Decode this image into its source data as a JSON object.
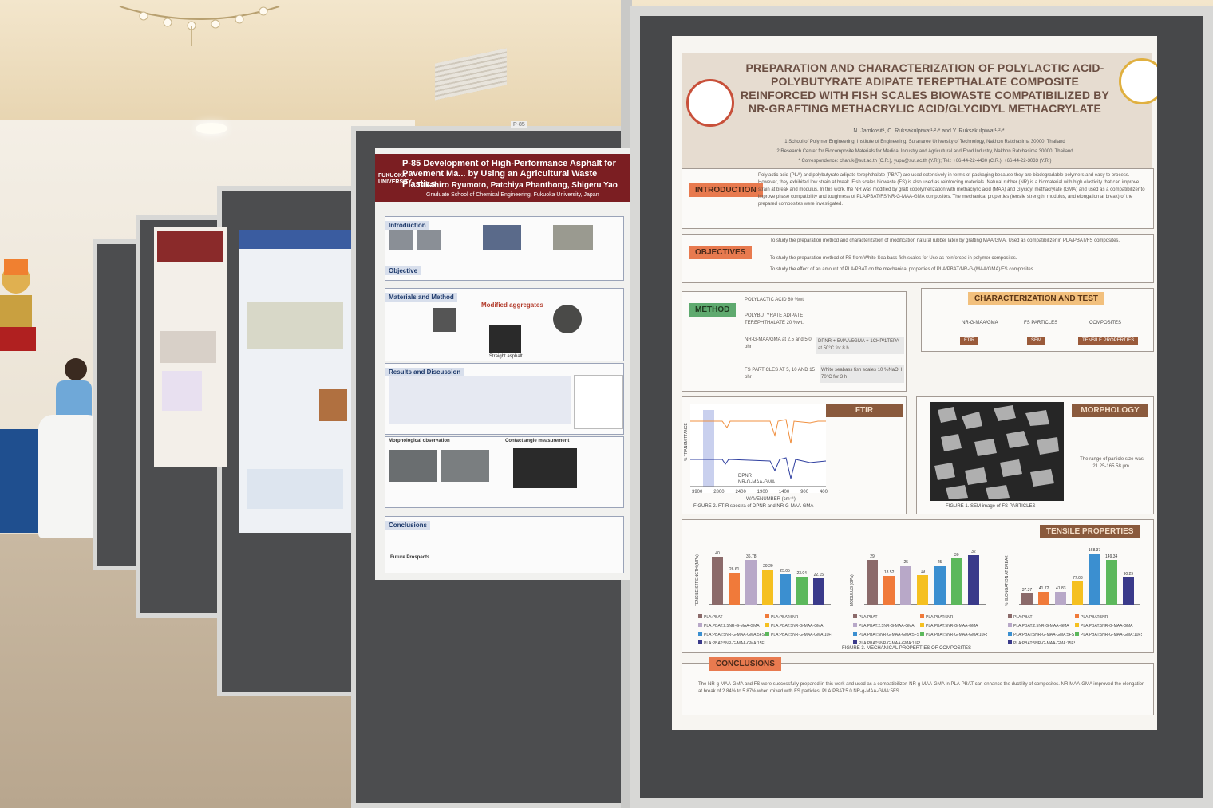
{
  "main_poster": {
    "title": "Preparation and Characterization of Polylactic Acid-Polybutyrate Adipate Terepthalate Composite Reinforced with Fish Scales Biowaste Compatibilized by NR-Grafting Methacrylic Acid/Glycidyl Methacrylate",
    "authors": "N. Jamkosit¹, C. Ruksakulpiwat¹·²·* and Y. Ruksakulpiwat¹·²·*",
    "affiliation_1": "1 School of Polymer Engineering, Institute of Engineering, Suranaree University of Technology, Nakhon Ratchasima 30000, Thailand",
    "affiliation_2": "2 Research Center for Biocomposite Materials for Medical Industry and Agricultural and Food Industry, Nakhon Ratchasima 30000, Thailand",
    "correspondence": "* Correspondence: charuk@sut.ac.th (C.R.), yupa@sut.ac.th (Y.R.); Tel.: +66-44-22-4430 (C.R.); +66-44-22-3033 (Y.R.)",
    "introduction": {
      "heading": "Introduction",
      "text": "Polylactic acid (PLA) and polybutyrate adipate terephthalate (PBAT) are used extensively in terms of packaging because they are biodegradable polymers and easy to process. However, they exhibited low strain at break. Fish scales biowaste (FS) is also used as reinforcing materials. Natural rubber (NR) is a biomaterial with high elasticity that can improve strain at break and modulus. In this work, the NR was modified by graft copolymerization with methacrylic acid (MAA) and Glycidyl methacrylate (GMA) and used as a compatibilizer to improve phase compatibility and toughness of PLA/PBAT/FS/NR-G-MAA-GMA composites. The mechanical properties (tensile strength, modulus, and elongation at break) of the prepared composites were investigated."
    },
    "objectives": {
      "heading": "Objectives",
      "items": [
        "To study the preparation method and characterization of modification natural rubber latex by grafting MAA/GMA. Used as compatibilizer in PLA/PBAT/FS composites.",
        "To study the preparation method of FS from White Sea bass fish scales for Use as reinforced in polymer composites.",
        "To study the effect of an amount of PLA/PBAT on the mechanical properties of PLA/PBAT/NR-G-(MAA/GMA)/FS composites."
      ]
    },
    "method": {
      "heading": "Method",
      "step1": "POLYLACTIC ACID 80 %wt.",
      "step2": "POLYBUTYRATE ADIPATE TEREPHTHALATE 20 %wt.",
      "step3": "NR-G-MAA/GMA at 2.5 and 5.0 phr",
      "step4": "FS PARTICLES AT 5, 10 AND 15 phr",
      "note1": "DPNR + 5MAA/5GMA + 1CHP/1TEPA at 50°C for 8 h",
      "note2": "White seabass fish scales 10 %NaOH 70°C for 3 h"
    },
    "characterization": {
      "heading": "Characterization and Test",
      "groups": [
        "NR-G-MAA/GMA",
        "FS PARTICLES",
        "COMPOSITES"
      ],
      "tests": [
        "FTIR",
        "SEM",
        "TENSILE PROPERTIES"
      ]
    },
    "ftir": {
      "heading": "FTIR",
      "y_label": "% TRANSMITTANCE",
      "x_label": "WAVENUMBER (cm⁻¹)",
      "x_ticks": [
        "3900",
        "2800",
        "2400",
        "1900",
        "1400",
        "900",
        "400"
      ],
      "series_a": "DPNR",
      "series_b": "NR-G-MAA-GMA",
      "caption": "FIGURE 2. FTIR spectra of DPNR and NR-G-MAA-GMA"
    },
    "morphology": {
      "heading": "Morphology",
      "text": "The range of particle size was 21.25-165.58 μm.",
      "caption": "FIGURE 1. SEM image of FS PARTICLES"
    },
    "tensile": {
      "heading": "Tensile Properties",
      "caption": "FIGURE 3. MECHANICAL PROPERTIES OF COMPOSITES"
    },
    "conclusions": {
      "heading": "Conclusions",
      "text": "The NR-g-MAA-GMA and FS were successfully prepared in this work and used as a compatibilizer. NR-g-MAA-GMA in PLA-PBAT can enhance the ductility of composites. NR-MAA-GMA improved the elongation at break of 2.84% to 5.87% when mixed with FS particles. PLA:PBAT:5.0 NR-g-MAA-GMA:5FS"
    }
  },
  "chart_data": [
    {
      "type": "bar",
      "title": "",
      "ylabel": "TENSILE STRENGTH (MPa)",
      "categories": [
        "PLA:PBAT",
        "PLA:PBAT:5NR",
        "PLA:PBAT:2.5NR-G-MAA-GMA",
        "PLA:PBAT:5NR-G-MAA-GMA",
        "PLA:PBAT:5NR-G-MAA-GMA:5FS",
        "PLA:PBAT:5NR-G-MAA-GMA:10FS",
        "PLA:PBAT:5NR-G-MAA-GMA:15FS"
      ],
      "values": [
        40,
        26.61,
        36.78,
        29.29,
        25.05,
        23.04,
        22.15
      ],
      "value_labels": [
        "40",
        "26.61",
        "36.78",
        "29.29",
        "25.05",
        "23.04",
        "22.15"
      ],
      "ylim": [
        0,
        45
      ]
    },
    {
      "type": "bar",
      "title": "",
      "ylabel": "MODULUS (GPa)",
      "categories": [
        "PLA:PBAT",
        "PLA:PBAT:5NR",
        "PLA:PBAT:2.5NR-G-MAA-GMA",
        "PLA:PBAT:5NR-G-MAA-GMA",
        "PLA:PBAT:5NR-G-MAA-GMA:5FS",
        "PLA:PBAT:5NR-G-MAA-GMA:10FS",
        "PLA:PBAT:5NR-G-MAA-GMA:15FS"
      ],
      "values": [
        29,
        18.52,
        25,
        19,
        25,
        30,
        32
      ],
      "value_labels": [
        "29",
        "18.52",
        "25",
        "19",
        "25",
        "30",
        "32"
      ],
      "ylim": [
        0,
        35
      ]
    },
    {
      "type": "bar",
      "title": "",
      "ylabel": "% ELONGATION AT BREAK",
      "categories": [
        "PLA:PBAT",
        "PLA:PBAT:5NR",
        "PLA:PBAT:2.5NR-G-MAA-GMA",
        "PLA:PBAT:5NR-G-MAA-GMA",
        "PLA:PBAT:5NR-G-MAA-GMA:5FS",
        "PLA:PBAT:5NR-G-MAA-GMA:10FS",
        "PLA:PBAT:5NR-G-MAA-GMA:15FS"
      ],
      "values": [
        37.37,
        41.72,
        41.83,
        77.03,
        168.37,
        149.34,
        90.29
      ],
      "value_labels": [
        "37.37",
        "41.72",
        "41.83",
        "77.03",
        "168.37",
        "149.34",
        "90.29"
      ],
      "ylim": [
        0,
        180
      ]
    }
  ],
  "bar_colors": [
    "#8b6a6a",
    "#f07a3a",
    "#b8a8c8",
    "#f5c020",
    "#3b8fd0",
    "#5cb85c",
    "#3a3a8a"
  ],
  "mid_poster": {
    "code": "P-85",
    "title": "Development of High-Performance Asphalt for Pavement Ma... by Using an Agricultural Waste Plastics",
    "authors": "Takahiro Ryumoto, Patchiya Phanthong, Shigeru Yao",
    "affiliation": "Graduate School of Chemical Engineering, Fukuoka University, Japan",
    "logo_text": "FUKUOKA UNIVERSITY",
    "sections": [
      "Introduction",
      "Objective",
      "Materials and Method",
      "Results and Discussion",
      "Conclusions"
    ],
    "modified_aggregates": "Modified aggregates",
    "straight_asphalt": "Straight asphalt",
    "morphological": "Morphological observation",
    "contact_angle": "Contact angle measurement",
    "future": "Future Prospects"
  },
  "panel_label": "P-85"
}
